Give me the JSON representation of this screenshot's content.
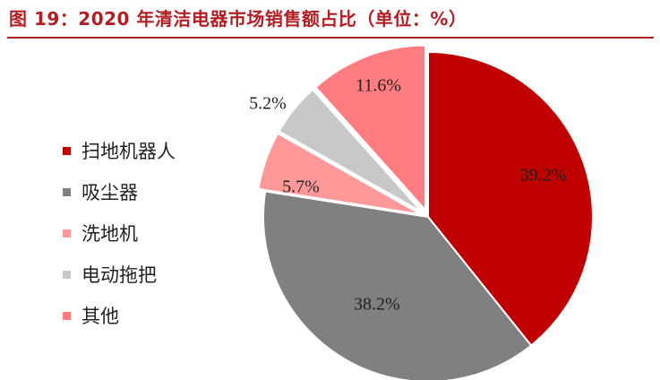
{
  "header": {
    "title": "图 19：2020 年清洁电器市场销售额占比（单位：%）"
  },
  "chart_data": {
    "type": "pie",
    "categories": [
      "扫地机器人",
      "吸尘器",
      "洗地机",
      "电动拖把",
      "其他"
    ],
    "values": [
      39.2,
      38.2,
      5.7,
      5.2,
      11.6
    ],
    "labels": [
      "39.2%",
      "38.2%",
      "5.7%",
      "5.2%",
      "11.6%"
    ],
    "colors": [
      "#c00000",
      "#808080",
      "#ff9999",
      "#c8c8c8",
      "#ff7c80"
    ],
    "legend": "left"
  }
}
